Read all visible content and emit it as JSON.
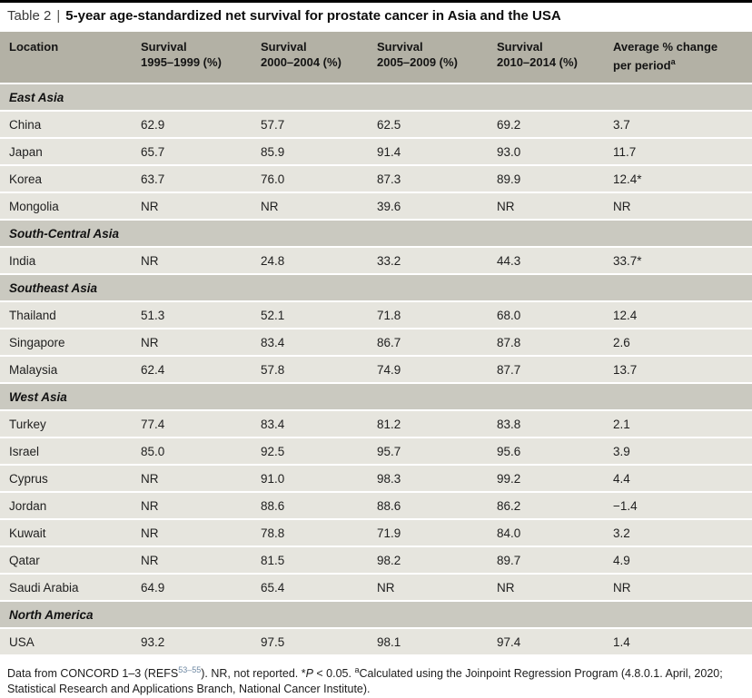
{
  "title": {
    "prefix": "Table 2",
    "separator": "|",
    "text": "5-year age-standardized net survival for prostate cancer in Asia and the USA"
  },
  "table": {
    "columns": [
      {
        "line1": "Location",
        "line2": "",
        "superscript": ""
      },
      {
        "line1": "Survival",
        "line2": "1995–1999 (%)",
        "superscript": ""
      },
      {
        "line1": "Survival",
        "line2": "2000–2004 (%)",
        "superscript": ""
      },
      {
        "line1": "Survival",
        "line2": "2005–2009 (%)",
        "superscript": ""
      },
      {
        "line1": "Survival",
        "line2": "2010–2014 (%)",
        "superscript": ""
      },
      {
        "line1": "Average % change",
        "line2": "per period",
        "superscript": "a"
      }
    ],
    "rows": [
      {
        "type": "section",
        "label": "East Asia"
      },
      {
        "type": "data",
        "location": "China",
        "values": [
          "62.9",
          "57.7",
          "62.5",
          "69.2",
          "3.7"
        ]
      },
      {
        "type": "data",
        "location": "Japan",
        "values": [
          "65.7",
          "85.9",
          "91.4",
          "93.0",
          "11.7"
        ]
      },
      {
        "type": "data",
        "location": "Korea",
        "values": [
          "63.7",
          "76.0",
          "87.3",
          "89.9",
          "12.4*"
        ]
      },
      {
        "type": "data",
        "location": "Mongolia",
        "values": [
          "NR",
          "NR",
          "39.6",
          "NR",
          "NR"
        ]
      },
      {
        "type": "section",
        "label": "South-Central Asia"
      },
      {
        "type": "data",
        "location": "India",
        "values": [
          "NR",
          "24.8",
          "33.2",
          "44.3",
          "33.7*"
        ]
      },
      {
        "type": "section",
        "label": "Southeast Asia"
      },
      {
        "type": "data",
        "location": "Thailand",
        "values": [
          "51.3",
          "52.1",
          "71.8",
          "68.0",
          "12.4"
        ]
      },
      {
        "type": "data",
        "location": "Singapore",
        "values": [
          "NR",
          "83.4",
          "86.7",
          "87.8",
          "2.6"
        ]
      },
      {
        "type": "data",
        "location": "Malaysia",
        "values": [
          "62.4",
          "57.8",
          "74.9",
          "87.7",
          "13.7"
        ]
      },
      {
        "type": "section",
        "label": "West Asia"
      },
      {
        "type": "data",
        "location": "Turkey",
        "values": [
          "77.4",
          "83.4",
          "81.2",
          "83.8",
          "2.1"
        ]
      },
      {
        "type": "data",
        "location": "Israel",
        "values": [
          "85.0",
          "92.5",
          "95.7",
          "95.6",
          "3.9"
        ]
      },
      {
        "type": "data",
        "location": "Cyprus",
        "values": [
          "NR",
          "91.0",
          "98.3",
          "99.2",
          "4.4"
        ]
      },
      {
        "type": "data",
        "location": "Jordan",
        "values": [
          "NR",
          "88.6",
          "88.6",
          "86.2",
          "−1.4"
        ]
      },
      {
        "type": "data",
        "location": "Kuwait",
        "values": [
          "NR",
          "78.8",
          "71.9",
          "84.0",
          "3.2"
        ]
      },
      {
        "type": "data",
        "location": "Qatar",
        "values": [
          "NR",
          "81.5",
          "98.2",
          "89.7",
          "4.9"
        ]
      },
      {
        "type": "data",
        "location": "Saudi Arabia",
        "values": [
          "64.9",
          "65.4",
          "NR",
          "NR",
          "NR"
        ]
      },
      {
        "type": "section",
        "label": "North America"
      },
      {
        "type": "data",
        "location": "USA",
        "values": [
          "93.2",
          "97.5",
          "98.1",
          "97.4",
          "1.4"
        ]
      }
    ]
  },
  "footnote": {
    "part1": "Data from CONCORD 1–3 (REFS",
    "refs_superscript": "53–55",
    "part2": "). NR, not reported. *",
    "p_italic": "P",
    "part3": " < 0.05. ",
    "a_superscript": "a",
    "part4": "Calculated using the Joinpoint Regression Program (4.8.0.1. April, 2020; Statistical Research and Applications Branch, National Cancer Institute)."
  },
  "colors": {
    "top_rule": "#000000",
    "header_bg": "#b3b1a5",
    "section_bg": "#cac9c0",
    "data_row_bg": "#e6e5de",
    "row_separator": "#ffffff",
    "reference_link": "#6d87a2"
  }
}
